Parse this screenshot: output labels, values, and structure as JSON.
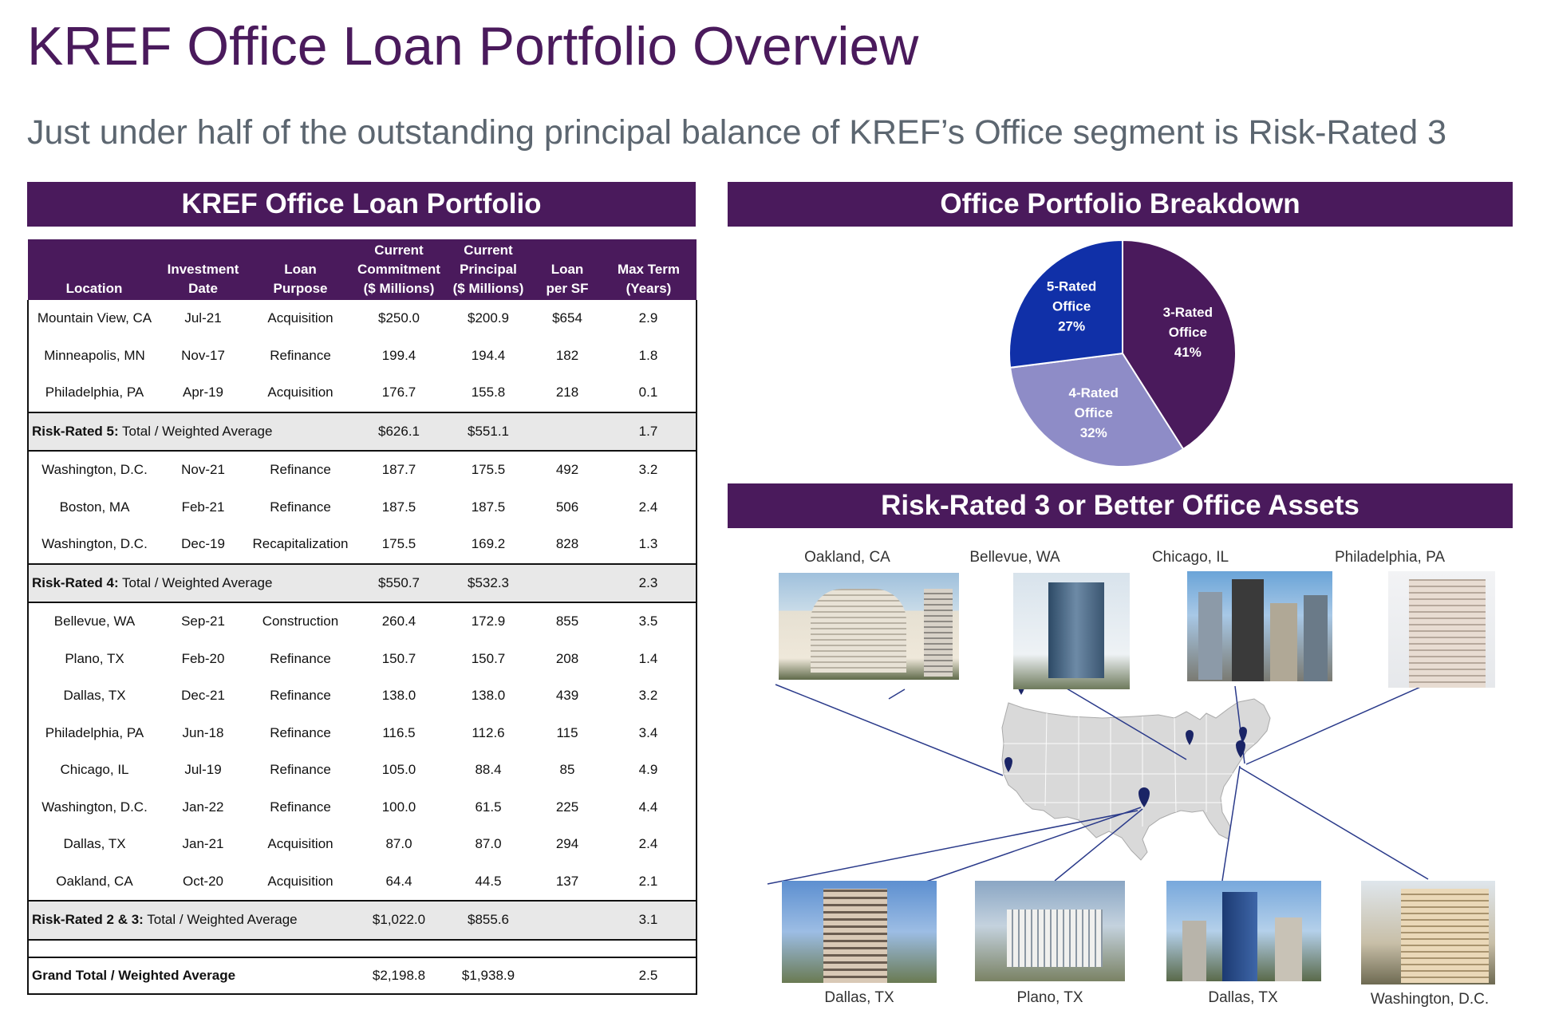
{
  "title": "KREF Office Loan Portfolio Overview",
  "subtitle": "Just under half of the outstanding principal balance of KREF’s Office segment is Risk-Rated 3",
  "table_panel": {
    "banner": "KREF Office Loan Portfolio",
    "headers": {
      "location": "Location",
      "inv_date_1": "Investment",
      "inv_date_2": "Date",
      "purpose_1": "Loan",
      "purpose_2": "Purpose",
      "commit_1": "Current",
      "commit_2": "Commitment",
      "commit_3": "($ Millions)",
      "principal_1": "Current",
      "principal_2": "Principal",
      "principal_3": "($ Millions)",
      "psf_1": "Loan",
      "psf_2": "per SF",
      "term_1": "Max Term",
      "term_2": "(Years)"
    },
    "group5": [
      {
        "loc": "Mountain View, CA",
        "date": "Jul-21",
        "purpose": "Acquisition",
        "commit": "$250.0",
        "principal": "$200.9",
        "psf": "$654",
        "term": "2.9"
      },
      {
        "loc": "Minneapolis, MN",
        "date": "Nov-17",
        "purpose": "Refinance",
        "commit": "199.4",
        "principal": "194.4",
        "psf": "182",
        "term": "1.8"
      },
      {
        "loc": "Philadelphia, PA",
        "date": "Apr-19",
        "purpose": "Acquisition",
        "commit": "176.7",
        "principal": "155.8",
        "psf": "218",
        "term": "0.1"
      }
    ],
    "sub5": {
      "bold": "Risk-Rated 5:",
      "rest": " Total / Weighted Average",
      "commit": "$626.1",
      "principal": "$551.1",
      "term": "1.7"
    },
    "group4": [
      {
        "loc": "Washington, D.C.",
        "date": "Nov-21",
        "purpose": "Refinance",
        "commit": "187.7",
        "principal": "175.5",
        "psf": "492",
        "term": "3.2"
      },
      {
        "loc": "Boston, MA",
        "date": "Feb-21",
        "purpose": "Refinance",
        "commit": "187.5",
        "principal": "187.5",
        "psf": "506",
        "term": "2.4"
      },
      {
        "loc": "Washington, D.C.",
        "date": "Dec-19",
        "purpose": "Recapitalization",
        "commit": "175.5",
        "principal": "169.2",
        "psf": "828",
        "term": "1.3"
      }
    ],
    "sub4": {
      "bold": "Risk-Rated 4:",
      "rest": " Total / Weighted Average",
      "commit": "$550.7",
      "principal": "$532.3",
      "term": "2.3"
    },
    "group23": [
      {
        "loc": "Bellevue, WA",
        "date": "Sep-21",
        "purpose": "Construction",
        "commit": "260.4",
        "principal": "172.9",
        "psf": "855",
        "term": "3.5"
      },
      {
        "loc": "Plano, TX",
        "date": "Feb-20",
        "purpose": "Refinance",
        "commit": "150.7",
        "principal": "150.7",
        "psf": "208",
        "term": "1.4"
      },
      {
        "loc": "Dallas, TX",
        "date": "Dec-21",
        "purpose": "Refinance",
        "commit": "138.0",
        "principal": "138.0",
        "psf": "439",
        "term": "3.2"
      },
      {
        "loc": "Philadelphia, PA",
        "date": "Jun-18",
        "purpose": "Refinance",
        "commit": "116.5",
        "principal": "112.6",
        "psf": "115",
        "term": "3.4"
      },
      {
        "loc": "Chicago, IL",
        "date": "Jul-19",
        "purpose": "Refinance",
        "commit": "105.0",
        "principal": "88.4",
        "psf": "85",
        "term": "4.9"
      },
      {
        "loc": "Washington, D.C.",
        "date": "Jan-22",
        "purpose": "Refinance",
        "commit": "100.0",
        "principal": "61.5",
        "psf": "225",
        "term": "4.4"
      },
      {
        "loc": "Dallas, TX",
        "date": "Jan-21",
        "purpose": "Acquisition",
        "commit": "87.0",
        "principal": "87.0",
        "psf": "294",
        "term": "2.4"
      },
      {
        "loc": "Oakland, CA",
        "date": "Oct-20",
        "purpose": "Acquisition",
        "commit": "64.4",
        "principal": "44.5",
        "psf": "137",
        "term": "2.1"
      }
    ],
    "sub23": {
      "bold": "Risk-Rated 2 & 3:",
      "rest": " Total / Weighted Average",
      "commit": "$1,022.0",
      "principal": "$855.6",
      "term": "3.1"
    },
    "grand": {
      "label": "Grand Total / Weighted Average",
      "commit": "$2,198.8",
      "principal": "$1,938.9",
      "term": "2.5"
    }
  },
  "pie_panel": {
    "banner": "Office Portfolio Breakdown",
    "chart_data": {
      "type": "pie",
      "slices": [
        {
          "label_1": "3-Rated",
          "label_2": "Office",
          "pct_label": "41%",
          "value": 41,
          "color": "#4a1a5c"
        },
        {
          "label_1": "4-Rated",
          "label_2": "Office",
          "pct_label": "32%",
          "value": 32,
          "color": "#8e8cc7"
        },
        {
          "label_1": "5-Rated",
          "label_2": "Office",
          "pct_label": "27%",
          "value": 27,
          "color": "#1030a8"
        }
      ]
    }
  },
  "assets_panel": {
    "banner": "Risk-Rated 3 or Better Office Assets",
    "top_cities": [
      "Oakland, CA",
      "Bellevue, WA",
      "Chicago, IL",
      "Philadelphia, PA"
    ],
    "bottom_cities": [
      "Dallas, TX",
      "Plano, TX",
      "Dallas, TX",
      "Washington, D.C."
    ]
  }
}
